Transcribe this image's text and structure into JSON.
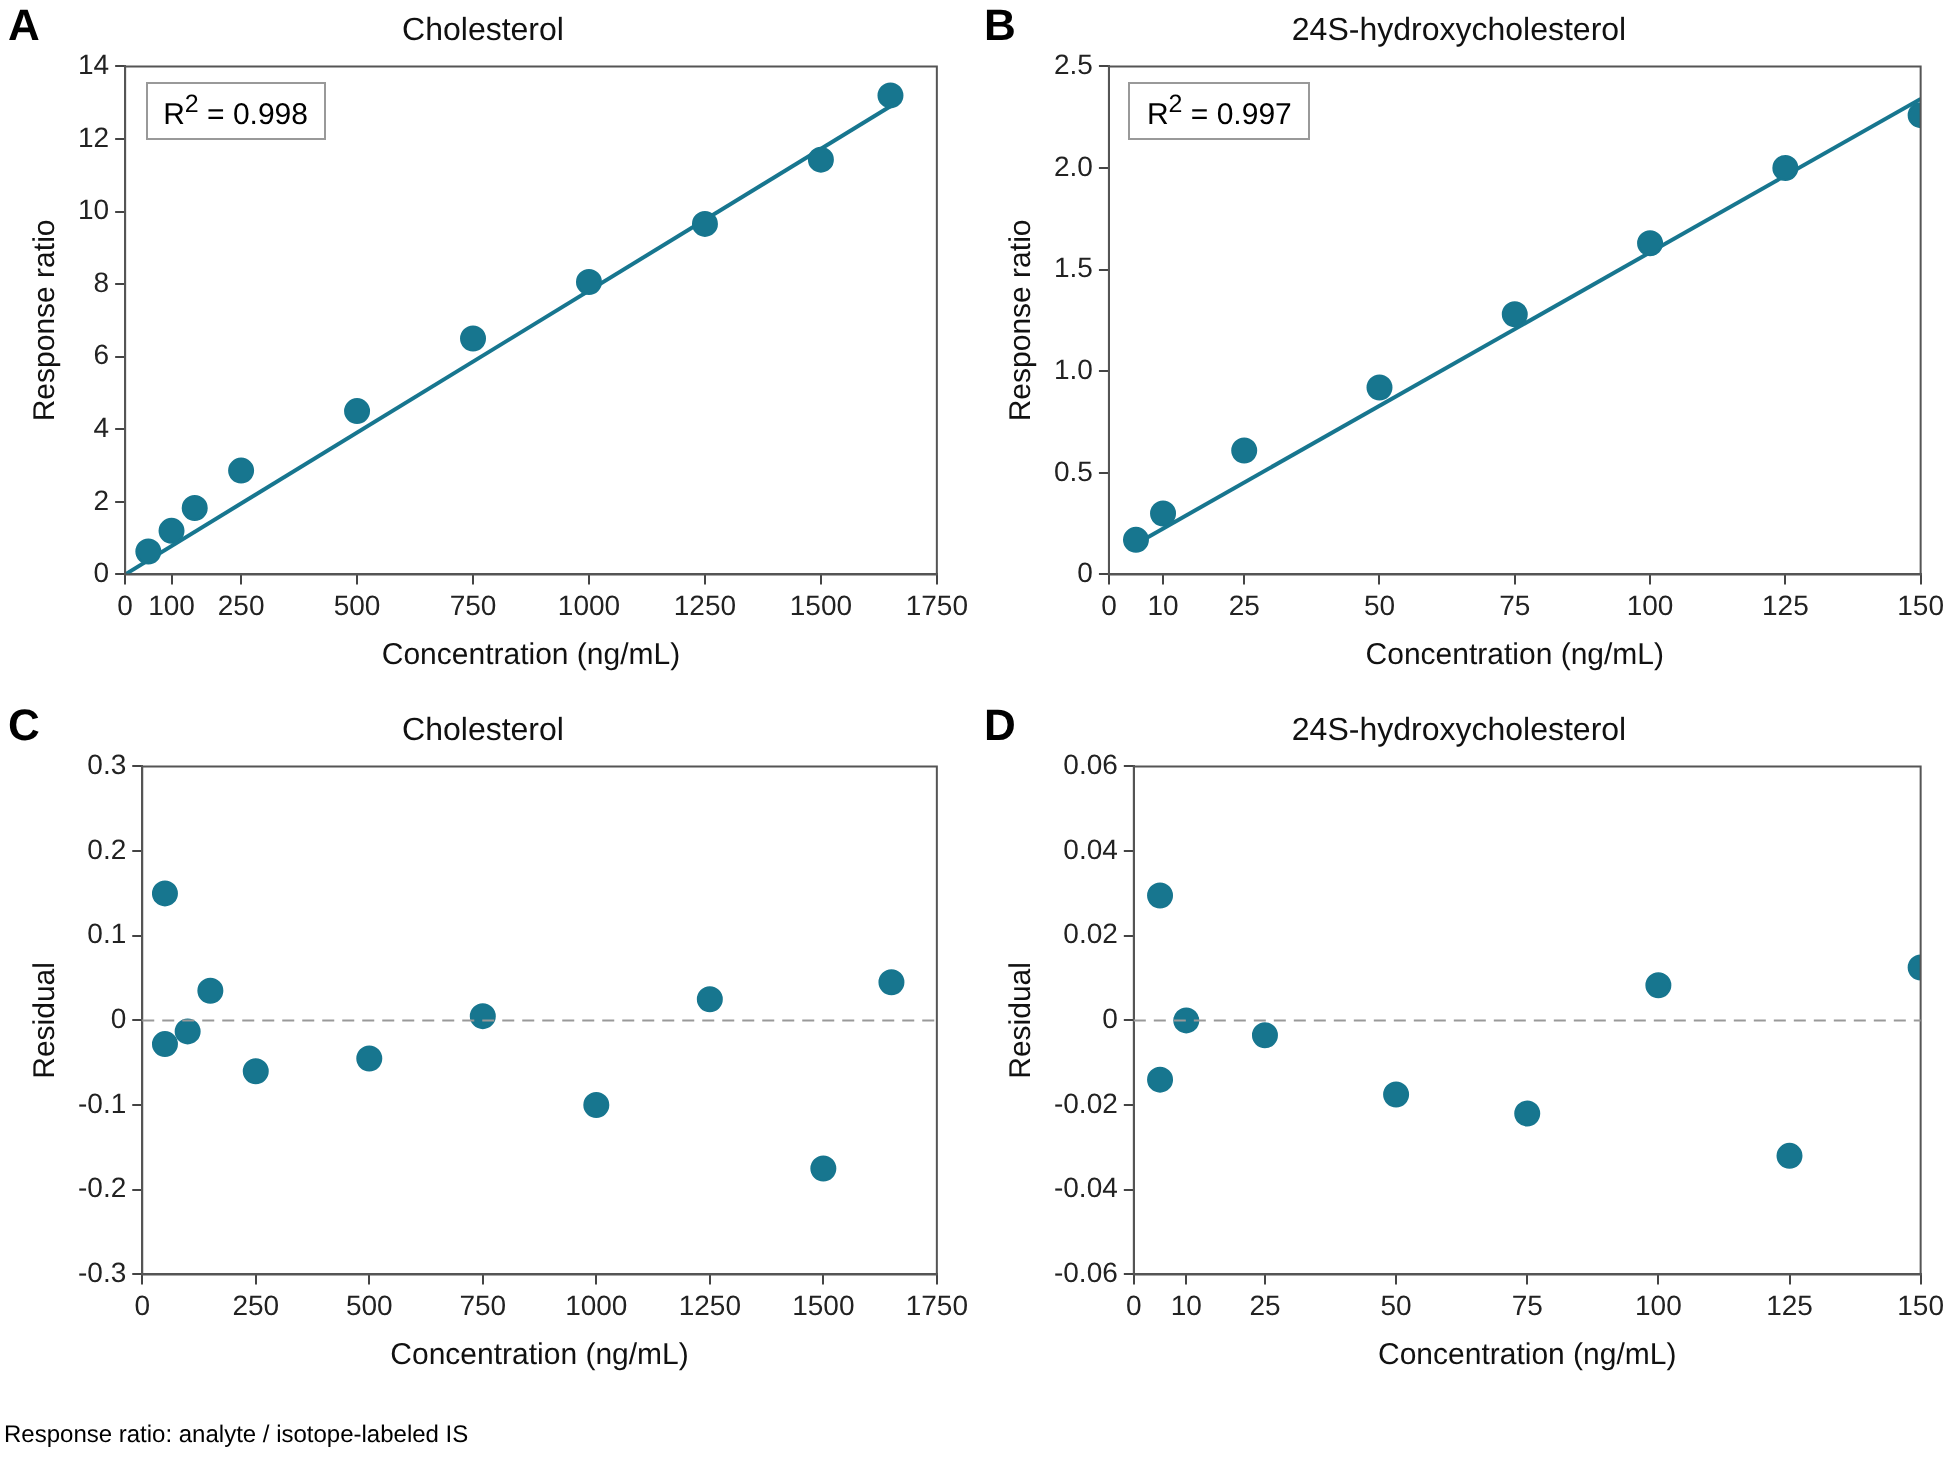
{
  "chart_data": [
    {
      "type": "scatter",
      "title": "Cholesterol",
      "xlabel": "Concentration (ng/mL)",
      "ylabel": "Response ratio",
      "annotations": [
        "A",
        "R$^{2}$ = 0.998"
      ],
      "xlim": [
        0,
        1750
      ],
      "xticks": [
        0,
        100,
        250,
        500,
        750,
        1000,
        1250,
        1500,
        1750
      ],
      "ylim": [
        0,
        14
      ],
      "yticks": [
        0,
        2,
        4,
        6,
        8,
        10,
        12,
        14
      ],
      "marker": "circle",
      "legend": false,
      "grid": false,
      "x": [
        50,
        100,
        150,
        250,
        500,
        750,
        1000,
        1250,
        1500,
        1650
      ],
      "series": [
        {
          "type": "line",
          "color": "#17768f",
          "marker": "none",
          "x": [
            0,
            1650
          ],
          "values": [
            0,
            12.9
          ]
        },
        {
          "color": "#17768f",
          "values": [
            0.63,
            1.2,
            1.83,
            2.86,
            4.5,
            6.5,
            8.06,
            9.66,
            11.43,
            13.2
          ]
        }
      ]
    },
    {
      "type": "scatter",
      "title": "24S-hydroxycholesterol",
      "xlabel": "Concentration (ng/mL)",
      "ylabel": "Response ratio",
      "annotations": [
        "B",
        "R$^{2}$ = 0.997"
      ],
      "xlim": [
        0,
        150
      ],
      "xticks": [
        0,
        10,
        25,
        50,
        75,
        100,
        125,
        150
      ],
      "ylim": [
        0,
        2.5
      ],
      "yticks": [
        0,
        {
          "value": 0.5,
          "label": "0.5"
        },
        {
          "value": 1,
          "label": "1.0"
        },
        {
          "value": 1.5,
          "label": "1.5"
        },
        {
          "value": 2,
          "label": "2.0"
        },
        {
          "value": 2.5,
          "label": "2.5"
        }
      ],
      "marker": "circle",
      "legend": false,
      "grid": false,
      "x": [
        5,
        10,
        25,
        50,
        75,
        100,
        125,
        150
      ],
      "series": [
        {
          "type": "line",
          "color": "#17768f",
          "marker": "none",
          "x": [
            5,
            150
          ],
          "values": [
            0.15,
            2.34
          ]
        },
        {
          "color": "#17768f",
          "values": [
            0.17,
            0.3,
            0.61,
            0.92,
            1.28,
            1.63,
            2.0,
            2.26
          ]
        }
      ]
    },
    {
      "type": "scatter",
      "title": "Cholesterol",
      "xlabel": "Concentration (ng/mL)",
      "ylabel": "Residual",
      "annotations": [
        "C"
      ],
      "xlim": [
        0,
        1750
      ],
      "xticks": [
        0,
        250,
        500,
        750,
        1000,
        1250,
        1500,
        1750
      ],
      "ylim": [
        -0.3,
        0.3
      ],
      "yticks": [
        -0.3,
        -0.2,
        -0.1,
        0,
        0.1,
        0.2,
        0.3
      ],
      "marker": "circle",
      "legend": false,
      "grid": false,
      "ref_lines": [
        {
          "axis": "y",
          "value": 0,
          "color": "#999999",
          "line_style": "dashed"
        }
      ],
      "x": [
        50,
        50,
        100,
        150,
        250,
        500,
        750,
        1000,
        1250,
        1500,
        1650
      ],
      "series": [
        {
          "color": "#17768f",
          "values": [
            0.15,
            -0.028,
            -0.013,
            0.035,
            -0.06,
            -0.045,
            0.005,
            -0.1,
            0.025,
            -0.175,
            0.045
          ]
        }
      ]
    },
    {
      "type": "scatter",
      "title": "24S-hydroxycholesterol",
      "xlabel": "Concentration (ng/mL)",
      "ylabel": "Residual",
      "annotations": [
        "D"
      ],
      "xlim": [
        0,
        150
      ],
      "xticks": [
        0,
        10,
        25,
        50,
        75,
        100,
        125,
        150
      ],
      "ylim": [
        -0.06,
        0.06
      ],
      "yticks": [
        -0.06,
        -0.04,
        -0.02,
        0,
        0.02,
        0.04,
        0.06
      ],
      "marker": "circle",
      "legend": false,
      "grid": false,
      "ref_lines": [
        {
          "axis": "y",
          "value": 0,
          "color": "#999999",
          "line_style": "dashed"
        }
      ],
      "x": [
        5,
        5,
        10,
        25,
        50,
        75,
        100,
        125,
        150
      ],
      "series": [
        {
          "color": "#17768f",
          "values": [
            0.0295,
            -0.014,
            0,
            -0.0035,
            -0.0175,
            -0.022,
            0.0083,
            -0.032,
            0.0125
          ]
        }
      ]
    },
    {
      "type": "other",
      "annotations": [
        "Response ratio: analyte / isotope-labeled IS"
      ]
    }
  ]
}
